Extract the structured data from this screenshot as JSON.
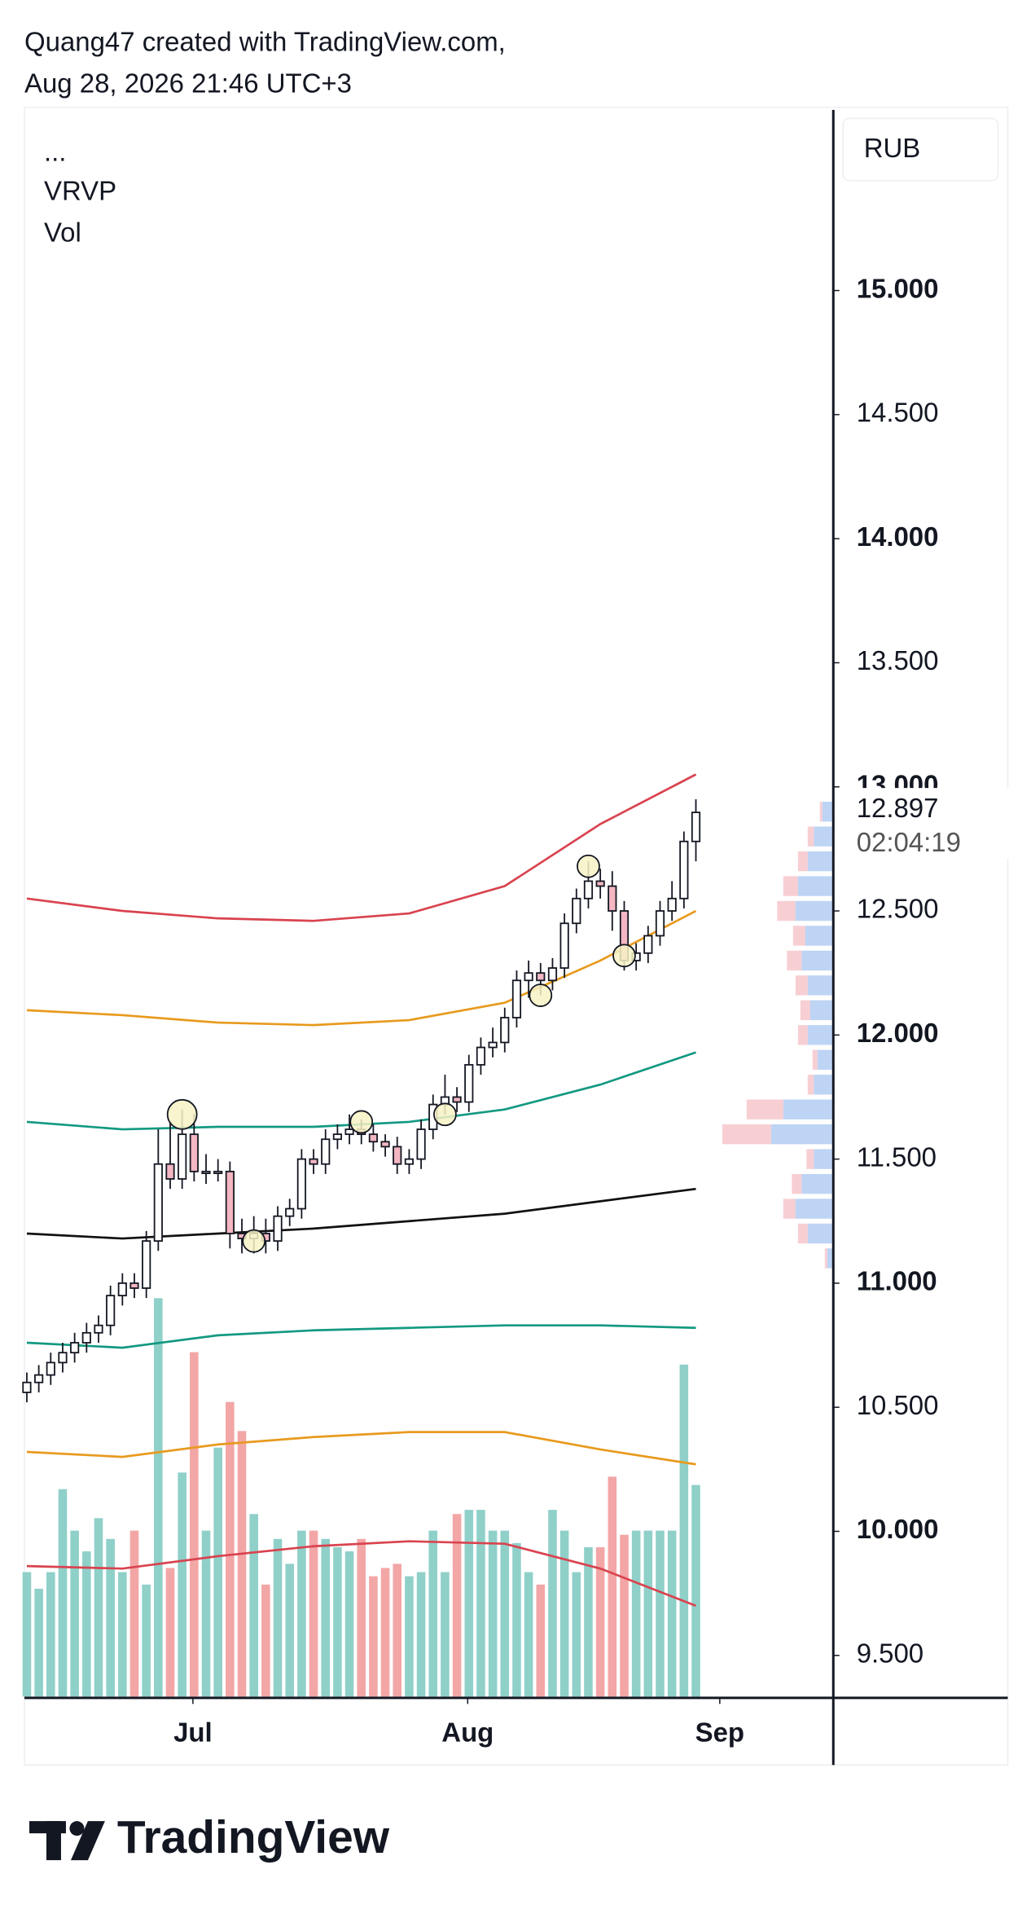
{
  "header": {
    "line1": "Quang47 created with TradingView.com,",
    "line2": "Aug 28, 2026 21:46 UTC+3"
  },
  "chart_data": {
    "type": "candlestick",
    "legend_items": [
      "...",
      "VRVP",
      "Vol"
    ],
    "currency": "RUB",
    "countdown": "02:04:19",
    "open": [
      10.56,
      10.6,
      10.63,
      10.68,
      10.72,
      10.76,
      10.8,
      10.83,
      10.95,
      11.0,
      10.98,
      11.17,
      11.48,
      11.42,
      11.6,
      11.45,
      11.45,
      11.45,
      11.2,
      11.18,
      11.2,
      11.17,
      11.27,
      11.3,
      11.5,
      11.48,
      11.58,
      11.6,
      11.62,
      11.6,
      11.57,
      11.55,
      11.48,
      11.5,
      11.62,
      11.72,
      11.75,
      11.73,
      11.88,
      11.95,
      11.97,
      12.07,
      12.22,
      12.25,
      12.22,
      12.27,
      12.45,
      12.55,
      12.62,
      12.6,
      12.5,
      12.3,
      12.33,
      12.4,
      12.5,
      12.55,
      12.78
    ],
    "high": [
      10.64,
      10.67,
      10.72,
      10.76,
      10.8,
      10.84,
      10.87,
      10.99,
      11.04,
      11.04,
      11.21,
      11.62,
      11.65,
      11.7,
      11.68,
      11.52,
      11.5,
      11.49,
      11.26,
      11.27,
      11.26,
      11.31,
      11.34,
      11.54,
      11.54,
      11.62,
      11.64,
      11.68,
      11.66,
      11.64,
      11.6,
      11.59,
      11.54,
      11.66,
      11.76,
      11.84,
      11.79,
      11.92,
      11.99,
      12.03,
      12.11,
      12.26,
      12.3,
      12.29,
      12.31,
      12.49,
      12.59,
      12.7,
      12.67,
      12.66,
      12.54,
      12.37,
      12.44,
      12.54,
      12.62,
      12.82,
      12.95
    ],
    "low": [
      10.52,
      10.56,
      10.59,
      10.64,
      10.68,
      10.72,
      10.76,
      10.79,
      10.91,
      10.94,
      10.94,
      11.13,
      11.38,
      11.38,
      11.41,
      11.4,
      11.41,
      11.14,
      11.12,
      11.12,
      11.12,
      11.13,
      11.23,
      11.26,
      11.44,
      11.44,
      11.54,
      11.56,
      11.56,
      11.53,
      11.51,
      11.44,
      11.44,
      11.46,
      11.58,
      11.68,
      11.69,
      11.69,
      11.84,
      11.91,
      11.93,
      12.03,
      12.15,
      12.16,
      12.18,
      12.23,
      12.41,
      12.51,
      12.55,
      12.42,
      12.26,
      12.26,
      12.29,
      12.36,
      12.46,
      12.51,
      12.7
    ],
    "close": [
      10.6,
      10.63,
      10.68,
      10.72,
      10.76,
      10.8,
      10.83,
      10.95,
      11.0,
      10.98,
      11.17,
      11.48,
      11.42,
      11.6,
      11.45,
      11.45,
      11.45,
      11.2,
      11.18,
      11.2,
      11.17,
      11.27,
      11.3,
      11.5,
      11.48,
      11.58,
      11.6,
      11.62,
      11.6,
      11.57,
      11.55,
      11.48,
      11.5,
      11.62,
      11.72,
      11.75,
      11.73,
      11.88,
      11.95,
      11.97,
      12.07,
      12.22,
      12.25,
      12.22,
      12.27,
      12.45,
      12.55,
      12.62,
      12.6,
      12.5,
      12.3,
      12.33,
      12.4,
      12.5,
      12.55,
      12.78,
      12.897
    ],
    "up_color": "#ffffff",
    "down_color": "#f4b6c2",
    "volume": [
      30,
      26,
      30,
      50,
      40,
      35,
      43,
      38,
      30,
      40,
      27,
      96,
      31,
      54,
      83,
      40,
      60,
      71,
      64,
      44,
      27,
      38,
      32,
      40,
      40,
      38,
      36,
      35,
      38,
      29,
      31,
      32,
      29,
      30,
      40,
      30,
      44,
      45,
      45,
      40,
      40,
      37,
      30,
      27,
      45,
      40,
      30,
      36,
      36,
      53,
      39,
      40,
      40,
      40,
      40,
      80,
      51
    ],
    "volume_lim": [
      0,
      100
    ],
    "volume_colors": {
      "up": "#8fd0c9",
      "down": "#f3a6a6"
    },
    "lines": [
      {
        "color": "#d9434f",
        "x": [
          0,
          8,
          16,
          24,
          32,
          40,
          48,
          56
        ],
        "values": [
          12.55,
          12.5,
          12.47,
          12.46,
          12.49,
          12.6,
          12.85,
          13.05
        ]
      },
      {
        "color": "#e89a1e",
        "x": [
          0,
          8,
          16,
          24,
          32,
          40,
          48,
          56
        ],
        "values": [
          12.1,
          12.08,
          12.05,
          12.04,
          12.06,
          12.13,
          12.3,
          12.5
        ]
      },
      {
        "color": "#139981",
        "x": [
          0,
          8,
          16,
          24,
          32,
          40,
          48,
          56
        ],
        "values": [
          11.65,
          11.62,
          11.63,
          11.63,
          11.65,
          11.7,
          11.8,
          11.93
        ]
      },
      {
        "color": "#111111",
        "x": [
          0,
          8,
          16,
          24,
          32,
          40,
          48,
          56
        ],
        "values": [
          11.2,
          11.18,
          11.2,
          11.22,
          11.25,
          11.28,
          11.33,
          11.38
        ]
      },
      {
        "color": "#139981",
        "x": [
          0,
          8,
          16,
          24,
          32,
          40,
          48,
          56
        ],
        "values": [
          10.76,
          10.74,
          10.79,
          10.81,
          10.82,
          10.83,
          10.83,
          10.82
        ]
      },
      {
        "color": "#e89a1e",
        "x": [
          0,
          8,
          16,
          24,
          32,
          40,
          48,
          56
        ],
        "values": [
          10.32,
          10.3,
          10.35,
          10.38,
          10.4,
          10.4,
          10.33,
          10.27
        ]
      },
      {
        "color": "#d9434f",
        "x": [
          0,
          8,
          16,
          24,
          32,
          40,
          48,
          56
        ],
        "values": [
          9.86,
          9.85,
          9.9,
          9.94,
          9.96,
          9.95,
          9.85,
          9.7
        ]
      }
    ],
    "markers": {
      "x": [
        13,
        19,
        28,
        35,
        43,
        47,
        50
      ],
      "values": [
        11.68,
        11.17,
        11.65,
        11.68,
        12.16,
        12.68,
        12.32
      ],
      "color": "#f7f2c4"
    },
    "profile": {
      "prices": [
        11.1,
        11.2,
        11.3,
        11.4,
        11.5,
        11.6,
        11.7,
        11.8,
        11.9,
        12.0,
        12.1,
        12.2,
        12.3,
        12.4,
        12.5,
        12.6,
        12.7,
        12.8,
        12.9
      ],
      "up": [
        4,
        20,
        30,
        25,
        15,
        50,
        40,
        15,
        12,
        20,
        18,
        20,
        25,
        22,
        30,
        28,
        20,
        15,
        8
      ],
      "down": [
        2,
        8,
        10,
        8,
        6,
        40,
        30,
        5,
        4,
        8,
        8,
        10,
        12,
        10,
        15,
        12,
        8,
        5,
        2
      ],
      "up_color": "#6f9fe8",
      "down_color": "#f0a0a8"
    },
    "xlim": [
      -0.2,
      67.4
    ],
    "xticks": [
      {
        "value": 13.9,
        "label": "Jul"
      },
      {
        "value": 36.9,
        "label": "Aug"
      },
      {
        "value": 58.0,
        "label": "Sep"
      }
    ],
    "ylim": [
      9.334,
      15.728
    ],
    "yticks": [
      {
        "value": 9.5,
        "label": "9.500"
      },
      {
        "value": 10,
        "label": "10.000"
      },
      {
        "value": 10.5,
        "label": "10.500"
      },
      {
        "value": 11,
        "label": "11.000"
      },
      {
        "value": 11.5,
        "label": "11.500"
      },
      {
        "value": 12,
        "label": "12.000"
      },
      {
        "value": 12.5,
        "label": "12.500"
      },
      {
        "value": 13,
        "label": "13.000"
      },
      {
        "value": 13.5,
        "label": "13.500"
      },
      {
        "value": 14,
        "label": "14.000"
      },
      {
        "value": 14.5,
        "label": "14.500"
      },
      {
        "value": 15,
        "label": "15.000"
      }
    ]
  },
  "footer": {
    "brand": "TradingView"
  }
}
